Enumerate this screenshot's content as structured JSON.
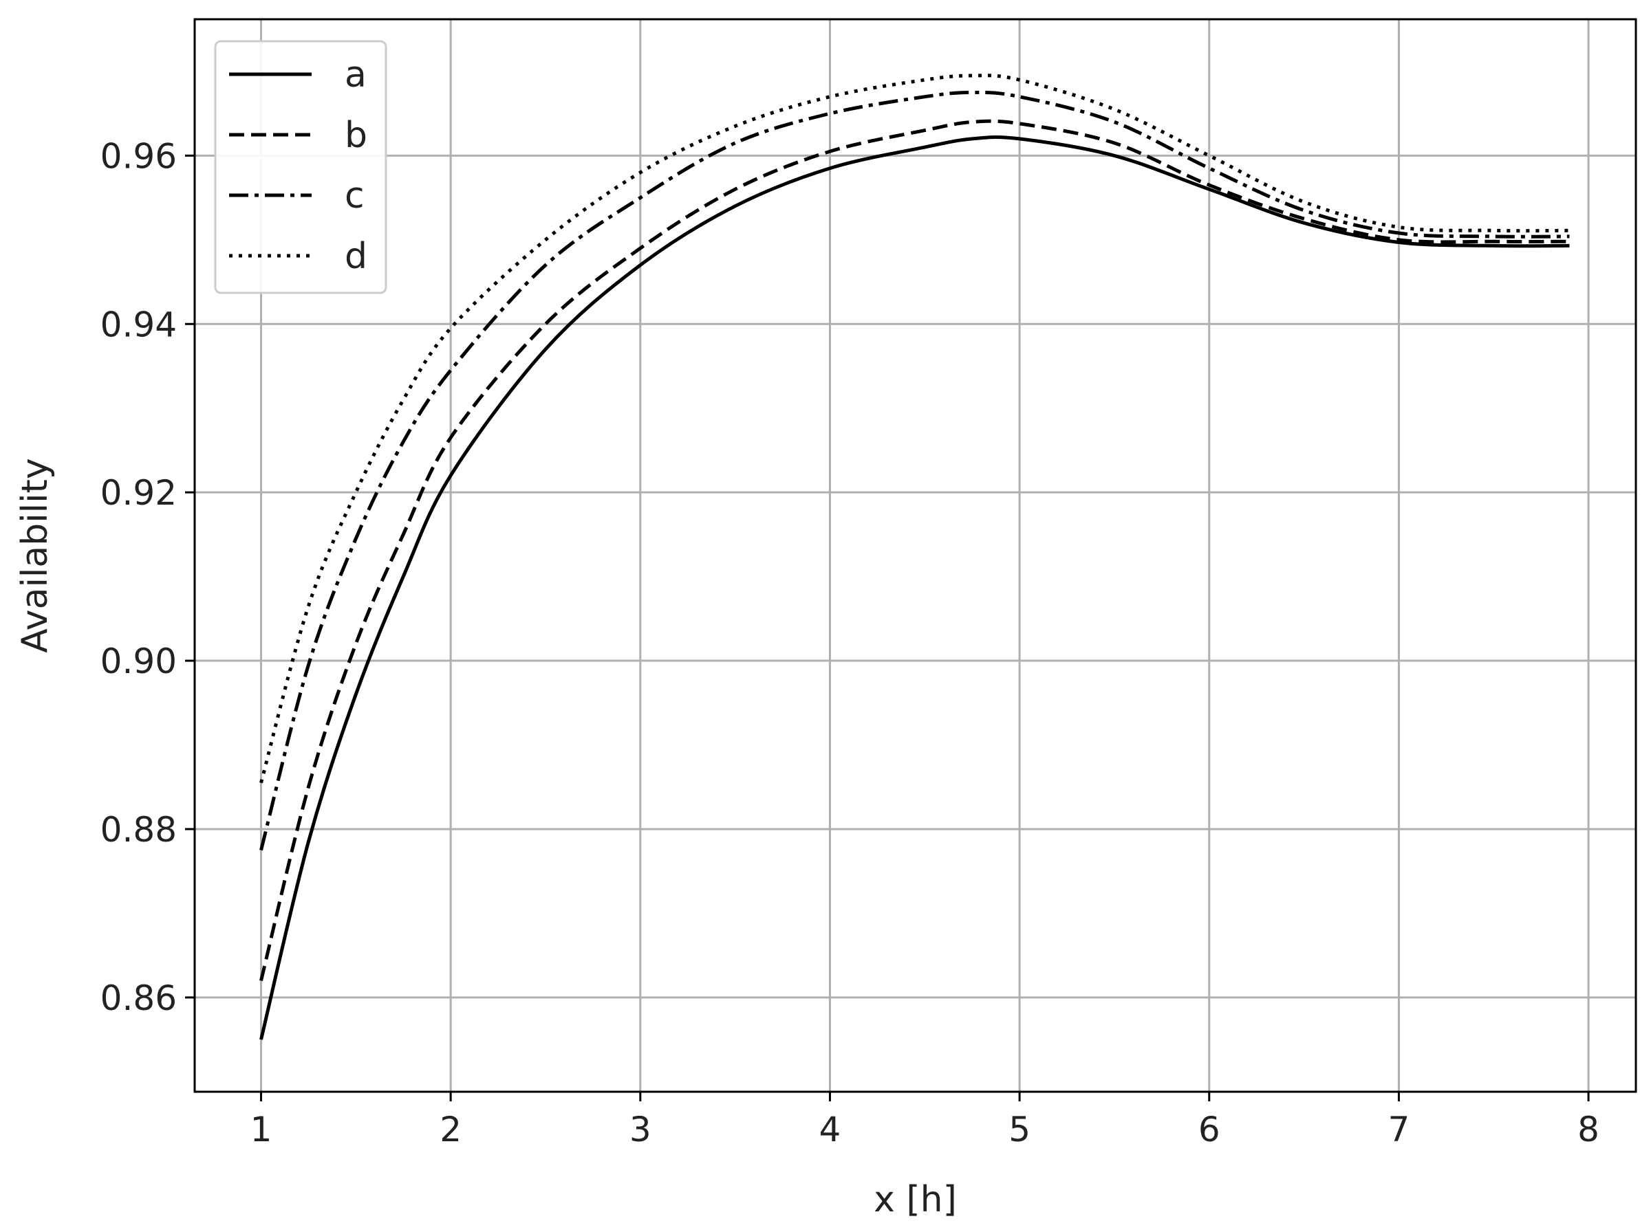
{
  "chart_data": {
    "type": "line",
    "title": "",
    "xlabel": "x [h]",
    "ylabel": "Availability",
    "xlim": [
      0.65,
      8.25
    ],
    "ylim": [
      0.8488,
      0.9762
    ],
    "xticks": [
      1,
      2,
      3,
      4,
      5,
      6,
      7,
      8
    ],
    "yticks": [
      0.86,
      0.88,
      0.9,
      0.92,
      0.94,
      0.96
    ],
    "xtick_labels": [
      "1",
      "2",
      "3",
      "4",
      "5",
      "6",
      "7",
      "8"
    ],
    "ytick_labels": [
      "0.86",
      "0.88",
      "0.90",
      "0.92",
      "0.94",
      "0.96"
    ],
    "grid": true,
    "legend_position": "top-left",
    "x": [
      1.0,
      1.25,
      1.5,
      1.75,
      2.0,
      2.5,
      3.0,
      3.5,
      4.0,
      4.5,
      4.75,
      5.0,
      5.5,
      6.0,
      6.5,
      7.0,
      7.5,
      7.9
    ],
    "series": [
      {
        "name": "a",
        "style": "solid",
        "values": [
          0.855,
          0.8785,
          0.896,
          0.91,
          0.922,
          0.937,
          0.947,
          0.954,
          0.9585,
          0.961,
          0.962,
          0.962,
          0.96,
          0.956,
          0.952,
          0.9497,
          0.9493,
          0.9493
        ]
      },
      {
        "name": "b",
        "style": "dashed",
        "values": [
          0.862,
          0.885,
          0.902,
          0.915,
          0.9265,
          0.94,
          0.949,
          0.956,
          0.9605,
          0.963,
          0.964,
          0.9638,
          0.9615,
          0.9565,
          0.9525,
          0.95,
          0.9498,
          0.9498
        ]
      },
      {
        "name": "c",
        "style": "dashdot",
        "values": [
          0.8775,
          0.8995,
          0.9145,
          0.926,
          0.9345,
          0.947,
          0.955,
          0.9615,
          0.965,
          0.967,
          0.9675,
          0.967,
          0.964,
          0.9585,
          0.9535,
          0.9508,
          0.9504,
          0.9504
        ]
      },
      {
        "name": "d",
        "style": "dotted",
        "values": [
          0.8855,
          0.9065,
          0.92,
          0.931,
          0.9395,
          0.95,
          0.958,
          0.9635,
          0.967,
          0.969,
          0.9695,
          0.969,
          0.9655,
          0.96,
          0.9545,
          0.9515,
          0.9511,
          0.9511
        ]
      }
    ]
  }
}
